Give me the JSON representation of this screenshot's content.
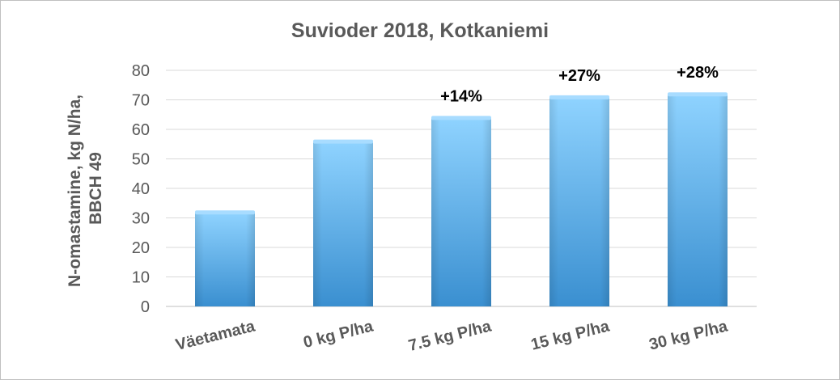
{
  "chart_data": {
    "type": "bar",
    "title": "Suvioder 2018, Kotkaniemi",
    "xlabel": "",
    "ylabel_lines": [
      "N-omastamine, kg N/ha,",
      "BBCH 49"
    ],
    "categories": [
      "Väetamata",
      "0 kg P/ha",
      "7.5 kg P/ha",
      "15 kg P/ha",
      "30 kg P/ha"
    ],
    "values": [
      32,
      56,
      64,
      71,
      72
    ],
    "data_labels": [
      "",
      "",
      "+14%",
      "+27%",
      "+28%"
    ],
    "ylim": [
      0,
      80
    ],
    "yticks": [
      0,
      10,
      20,
      30,
      40,
      50,
      60,
      70,
      80
    ],
    "grid": true,
    "legend": "none",
    "colors": {
      "bar_top": "#8fd3ff",
      "bar_bottom": "#3a8fd0",
      "bar_cap": "#a8dcff",
      "grid": "#d9d9d9",
      "text": "#595959"
    }
  }
}
